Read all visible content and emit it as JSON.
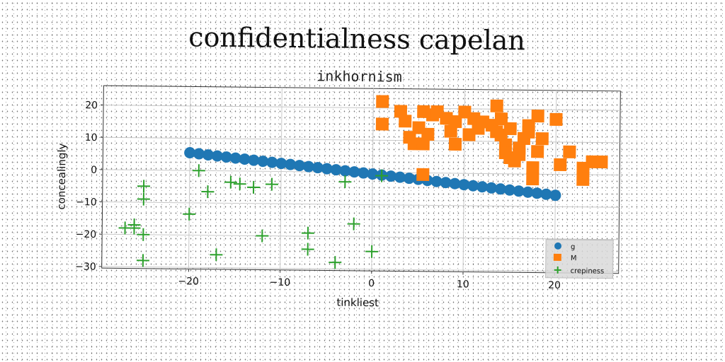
{
  "chart_data": {
    "type": "scatter",
    "title": "confidentialness capelan",
    "subtitle": "inkhornism",
    "xlabel": "tinkliest",
    "ylabel": "concealingly",
    "xlim": [
      -29.5,
      27
    ],
    "ylim": [
      -30.5,
      26
    ],
    "xticks": [
      -20,
      -10,
      0,
      10,
      20
    ],
    "yticks": [
      20,
      10,
      0,
      -10,
      -20,
      -30
    ],
    "grid": true,
    "legend_position": "bottom-right",
    "series": [
      {
        "name": "g",
        "marker": "circle",
        "color": "#1f77b4",
        "points": [
          [
            -20,
            5.5
          ],
          [
            -19,
            5.2
          ],
          [
            -18,
            4.9
          ],
          [
            -17,
            4.6
          ],
          [
            -16,
            4.3
          ],
          [
            -15,
            4.0
          ],
          [
            -14,
            3.7
          ],
          [
            -13,
            3.4
          ],
          [
            -12,
            3.1
          ],
          [
            -11,
            2.8
          ],
          [
            -10,
            2.5
          ],
          [
            -9,
            2.2
          ],
          [
            -8,
            1.9
          ],
          [
            -7,
            1.6
          ],
          [
            -6,
            1.3
          ],
          [
            -5,
            1.0
          ],
          [
            -4,
            0.7
          ],
          [
            -3,
            0.4
          ],
          [
            -2,
            0.1
          ],
          [
            -1,
            -0.2
          ],
          [
            0,
            -0.5
          ],
          [
            1,
            -0.8
          ],
          [
            2,
            -1.1
          ],
          [
            3,
            -1.4
          ],
          [
            4,
            -1.7
          ],
          [
            5,
            -2.0
          ],
          [
            6,
            -2.3
          ],
          [
            7,
            -2.6
          ],
          [
            8,
            -2.9
          ],
          [
            9,
            -3.2
          ],
          [
            10,
            -3.5
          ],
          [
            11,
            -3.8
          ],
          [
            12,
            -4.1
          ],
          [
            13,
            -4.4
          ],
          [
            14,
            -4.7
          ],
          [
            15,
            -5.0
          ],
          [
            16,
            -5.3
          ],
          [
            17,
            -5.6
          ],
          [
            18,
            -5.9
          ],
          [
            19,
            -6.2
          ],
          [
            20,
            -6.5
          ]
        ]
      },
      {
        "name": "M",
        "marker": "square",
        "color": "#ff7f0e",
        "points": [
          [
            1,
            22
          ],
          [
            1,
            15
          ],
          [
            3,
            19
          ],
          [
            3.5,
            16
          ],
          [
            4,
            11
          ],
          [
            4.5,
            9
          ],
          [
            5,
            14
          ],
          [
            5.5,
            19
          ],
          [
            5.5,
            9
          ],
          [
            6,
            12
          ],
          [
            6.5,
            18
          ],
          [
            7,
            19
          ],
          [
            8,
            17
          ],
          [
            8.5,
            13
          ],
          [
            9,
            16
          ],
          [
            9,
            9
          ],
          [
            10,
            19
          ],
          [
            10.5,
            12
          ],
          [
            11,
            17
          ],
          [
            11.5,
            14
          ],
          [
            12,
            16
          ],
          [
            13,
            15
          ],
          [
            13.5,
            21
          ],
          [
            13.5,
            13
          ],
          [
            14,
            17
          ],
          [
            14,
            12
          ],
          [
            14.5,
            9
          ],
          [
            14.5,
            6.5
          ],
          [
            15,
            14
          ],
          [
            15,
            5
          ],
          [
            15.5,
            4
          ],
          [
            16,
            8
          ],
          [
            16,
            6
          ],
          [
            16.5,
            11
          ],
          [
            17,
            13
          ],
          [
            17,
            15
          ],
          [
            17.5,
            2
          ],
          [
            17.5,
            -1.5
          ],
          [
            18,
            18
          ],
          [
            18,
            7
          ],
          [
            18.5,
            11
          ],
          [
            20,
            17
          ],
          [
            20.5,
            3
          ],
          [
            21.5,
            7
          ],
          [
            23,
            2
          ],
          [
            23,
            -1.5
          ],
          [
            24,
            4
          ],
          [
            25,
            4
          ],
          [
            5.5,
            -0.5
          ]
        ]
      },
      {
        "name": "crepiness",
        "marker": "plus",
        "color": "#2ca02c",
        "points": [
          [
            -27,
            -18
          ],
          [
            -26,
            -18
          ],
          [
            -26,
            -17
          ],
          [
            -25,
            -5
          ],
          [
            -25,
            -9
          ],
          [
            -25,
            -20
          ],
          [
            -25,
            -28
          ],
          [
            -20,
            -13.5
          ],
          [
            -19,
            0
          ],
          [
            -18,
            -6.5
          ],
          [
            -17,
            -26
          ],
          [
            -15.5,
            -3.5
          ],
          [
            -14.5,
            -4
          ],
          [
            -13,
            -5
          ],
          [
            -12,
            -20
          ],
          [
            -11,
            -4
          ],
          [
            -7,
            -19
          ],
          [
            -7,
            -24
          ],
          [
            -4,
            -28
          ],
          [
            -3,
            -3
          ],
          [
            -2,
            -16
          ],
          [
            0,
            -24.5
          ],
          [
            1,
            -1
          ]
        ]
      }
    ]
  }
}
